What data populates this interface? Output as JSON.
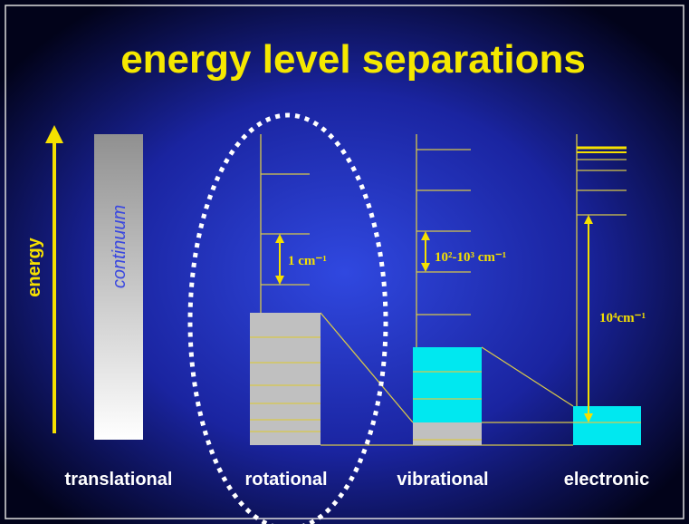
{
  "title": "energy level separations",
  "axis_label": "energy",
  "continuum_label": "continuum",
  "spacings": {
    "rotational": "1 cm⁻¹",
    "vibrational": "10²-10³ cm⁻¹",
    "electronic": "10⁴cm⁻¹"
  },
  "columns": [
    "translational",
    "rotational",
    "vibrational",
    "electronic"
  ]
}
